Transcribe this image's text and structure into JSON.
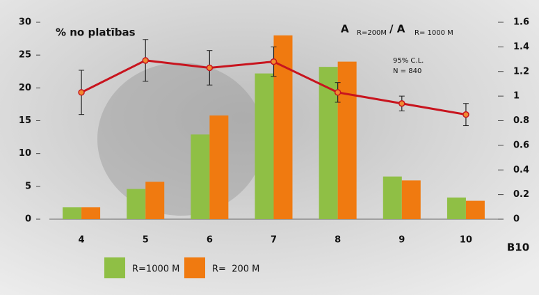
{
  "chart_data": {
    "type": "bar",
    "title": "% no platības",
    "x_label": "B10",
    "annotations": [
      "A",
      "R=200M",
      "/ A",
      "R= 1000 M",
      "95% C.L.",
      "N = 840"
    ],
    "categories": [
      "4",
      "5",
      "6",
      "7",
      "8",
      "9",
      "10"
    ],
    "series": [
      {
        "name": "R=1000 M",
        "color": "#8fbf45",
        "values": [
          1.8,
          4.6,
          12.9,
          22.2,
          23.2,
          6.5,
          3.3
        ]
      },
      {
        "name": "R=  200 M",
        "color": "#f07a10",
        "values": [
          1.8,
          5.7,
          15.8,
          28,
          24,
          5.9,
          2.8
        ]
      },
      {
        "type": "line",
        "axis": "y2",
        "color": "#c8141e",
        "values": [
          1.03,
          1.29,
          1.23,
          1.28,
          1.03,
          0.94,
          0.85
        ],
        "errors": [
          0.18,
          0.17,
          0.14,
          0.12,
          0.08,
          0.06,
          0.09
        ]
      }
    ],
    "ylim": [
      0,
      30
    ],
    "yticks": [
      0,
      5,
      10,
      15,
      20,
      25,
      30
    ],
    "y2lim": [
      0,
      1.6
    ],
    "y2ticks": [
      0,
      0.2,
      0.4,
      0.6,
      0.8,
      1,
      1.2,
      1.4,
      1.6
    ]
  }
}
